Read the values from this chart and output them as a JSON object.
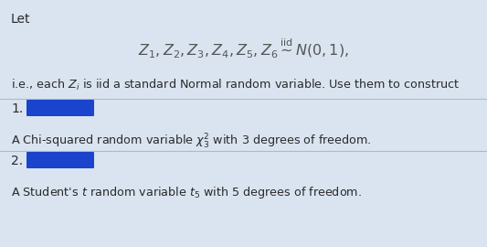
{
  "background_color": "#d9e4f0",
  "text_color": "#2a2a2a",
  "formula_color": "#555555",
  "redact_color": "#1a44cc",
  "divider_color": "#b0b8c8",
  "title_text": "Let",
  "main_formula": "$Z_1, Z_2, Z_3, Z_4, Z_5, Z_6 \\overset{\\mathrm{iid}}{\\sim} N(0,1),$",
  "subtitle": "i.e., each $Z_i$ is iid a standard Normal random variable. Use them to construct",
  "item1_label": "1.",
  "item1_desc": "A Chi-squared random variable $\\chi^2_3$ with 3 degrees of freedom.",
  "item2_label": "2.",
  "item2_desc": "A Student's $t$ random variable $t_5$ with 5 degrees of freedom.",
  "fig_width": 5.33,
  "fig_height": 2.7,
  "dpi": 100
}
